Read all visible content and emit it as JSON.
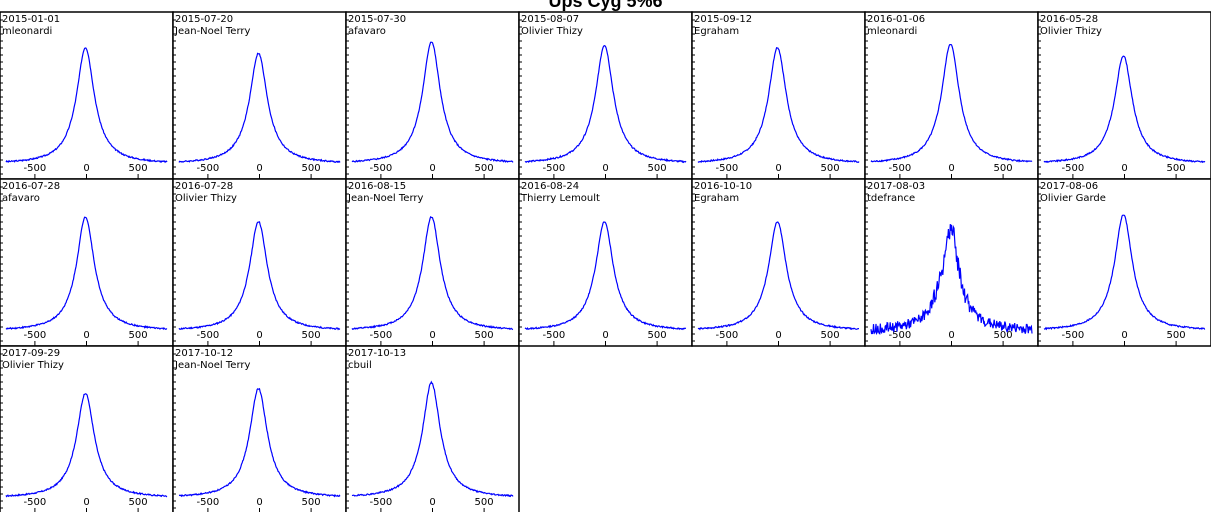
{
  "chart_data": {
    "type": "line",
    "title": "Ups Cyg 5%6",
    "x_ticks": [
      -500,
      0,
      500
    ],
    "xlim": [
      -780,
      780
    ],
    "ylim": [
      0,
      1.15
    ],
    "line_color": "#0000ff",
    "panels": [
      {
        "date": "2015-01-01",
        "observer": "mleonardi"
      },
      {
        "date": "2015-07-20",
        "observer": "Jean-Noel Terry"
      },
      {
        "date": "2015-07-30",
        "observer": "afavaro"
      },
      {
        "date": "2015-08-07",
        "observer": "Olivier Thizy"
      },
      {
        "date": "2015-09-12",
        "observer": "Egraham"
      },
      {
        "date": "2016-01-06",
        "observer": "mleonardi"
      },
      {
        "date": "2016-05-28",
        "observer": "Olivier Thizy"
      },
      {
        "date": "2016-07-28",
        "observer": "afavaro"
      },
      {
        "date": "2016-07-28",
        "observer": "Olivier Thizy"
      },
      {
        "date": "2016-08-15",
        "observer": "Jean-Noel Terry"
      },
      {
        "date": "2016-08-24",
        "observer": "Thierry Lemoult"
      },
      {
        "date": "2016-10-10",
        "observer": "Egraham"
      },
      {
        "date": "2017-08-03",
        "observer": "tdefrance"
      },
      {
        "date": "2017-08-06",
        "observer": "Olivier Garde"
      },
      {
        "date": "2017-09-29",
        "observer": "Olivier Thizy"
      },
      {
        "date": "2017-10-12",
        "observer": "Jean-Noel Terry"
      },
      {
        "date": "2017-10-13",
        "observer": "cbuil"
      }
    ],
    "peak": [
      1.0,
      0.95,
      1.05,
      1.02,
      1.0,
      1.03,
      0.93,
      0.98,
      0.94,
      0.98,
      0.94,
      0.94,
      0.87,
      1.0,
      0.9,
      0.94,
      0.99
    ]
  }
}
